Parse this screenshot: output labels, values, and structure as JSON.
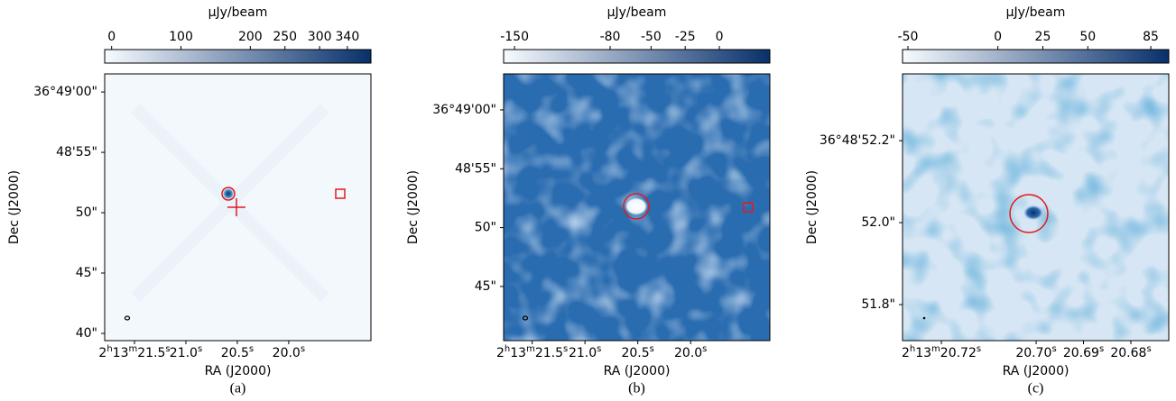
{
  "chart_data": [
    {
      "type": "image",
      "caption": "(a)",
      "colorbar_label": "μJy/beam",
      "xlabel": "RA (J2000)",
      "ylabel": "Dec (J2000)",
      "colors": [
        "#f7fbff",
        "#08306b"
      ],
      "clim": [
        -10,
        374
      ],
      "cticks": [
        0,
        100,
        200,
        250,
        300,
        340
      ],
      "xlim": [
        21.79,
        19.2
      ],
      "xticks": [
        {
          "value": 21.5,
          "label": "2h13m21.5s"
        },
        {
          "value": 21.0,
          "label": "21.0s"
        },
        {
          "value": 20.5,
          "label": "20.5s"
        },
        {
          "value": 20.0,
          "label": "20.0s"
        }
      ],
      "ylim": [
        39.4,
        61.5
      ],
      "yticks": [
        {
          "value": 60,
          "label": "36°49'00\""
        },
        {
          "value": 55,
          "label": "48'55\""
        },
        {
          "value": 50,
          "label": "50\""
        },
        {
          "value": 45,
          "label": "45\""
        },
        {
          "value": 40,
          "label": "40\""
        }
      ]
    },
    {
      "type": "image",
      "caption": "(b)",
      "colorbar_label": "μJy/beam",
      "xlabel": "RA (J2000)",
      "ylabel": "Dec (J2000)",
      "colors": [
        "#f7fbff",
        "#08306b"
      ],
      "clim": [
        -158,
        37
      ],
      "cticks": [
        -150,
        -80,
        -50,
        -25,
        0
      ],
      "xlim": [
        21.77,
        19.25
      ],
      "xticks": [
        {
          "value": 21.5,
          "label": "2h13m21.5s"
        },
        {
          "value": 21.0,
          "label": "21.0s"
        },
        {
          "value": 20.5,
          "label": "20.5s"
        },
        {
          "value": 20.0,
          "label": "20.0s"
        }
      ],
      "ylim": [
        40.4,
        63.06
      ],
      "yticks": [
        {
          "value": 60,
          "label": "36°49'00\""
        },
        {
          "value": 55,
          "label": "48'55\""
        },
        {
          "value": 50,
          "label": "50\""
        },
        {
          "value": 45,
          "label": "45\""
        }
      ]
    },
    {
      "type": "image",
      "caption": "(c)",
      "colorbar_label": "μJy/beam",
      "xlabel": "RA (J2000)",
      "ylabel": "Dec (J2000)",
      "colors": [
        "#f7fbff",
        "#08306b"
      ],
      "clim": [
        -53,
        95
      ],
      "cticks": [
        -50,
        0,
        25,
        50,
        85
      ],
      "xlim": [
        20.7282,
        20.672
      ],
      "xticks": [
        {
          "value": 20.72,
          "label": "2h13m20.72s"
        },
        {
          "value": 20.7,
          "label": "20.70s"
        },
        {
          "value": 20.69,
          "label": "20.69s"
        },
        {
          "value": 20.68,
          "label": "20.68s"
        }
      ],
      "ylim": [
        51.712,
        52.363
      ],
      "yticks": [
        {
          "value": 52.2,
          "label": "36°48'52.2\""
        },
        {
          "value": 52.0,
          "label": "52.0\""
        },
        {
          "value": 51.8,
          "label": "51.8\""
        }
      ]
    }
  ]
}
